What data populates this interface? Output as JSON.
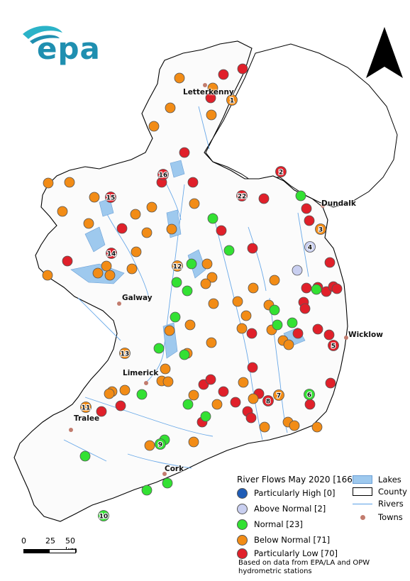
{
  "logo": {
    "text": "epa",
    "colors": [
      "#2bb3c8",
      "#1f8fb0"
    ]
  },
  "north_arrow": {
    "icon": "north-arrow-icon"
  },
  "towns": [
    {
      "name": "Letterkenny"
    },
    {
      "name": "Dundalk"
    },
    {
      "name": "Galway"
    },
    {
      "name": "Wicklow"
    },
    {
      "name": "Limerick"
    },
    {
      "name": "Tralee"
    },
    {
      "name": "Cork"
    }
  ],
  "legend": {
    "title": "River Flows May 2020 [166]",
    "classes": [
      {
        "label": "Particularly High [0]",
        "color": "#1f5cb6"
      },
      {
        "label": "Above Normal [2]",
        "color": "#c9cff0"
      },
      {
        "label": "Normal [23]",
        "color": "#33e133"
      },
      {
        "label": "Below Normal [71]",
        "color": "#f28c16"
      },
      {
        "label": "Particularly Low [70]",
        "color": "#e0202a"
      }
    ],
    "symbols": [
      {
        "label": "Lakes",
        "icon": "lake-symbol"
      },
      {
        "label": "County",
        "icon": "county-symbol"
      },
      {
        "label": "Rivers",
        "icon": "river-symbol"
      },
      {
        "label": "Towns",
        "icon": "town-symbol"
      }
    ]
  },
  "scale_bar": {
    "ticks": [
      "0",
      "25",
      "50 km"
    ]
  },
  "source_note": "Based on data from EPA/LA and OPW hydrometric stations",
  "numbered_stations": [
    {
      "n": "1",
      "cls": "below"
    },
    {
      "n": "2",
      "cls": "low"
    },
    {
      "n": "3",
      "cls": "below"
    },
    {
      "n": "4",
      "cls": "above"
    },
    {
      "n": "5",
      "cls": "low"
    },
    {
      "n": "6",
      "cls": "normal"
    },
    {
      "n": "7",
      "cls": "below"
    },
    {
      "n": "8",
      "cls": "low"
    },
    {
      "n": "9",
      "cls": "normal"
    },
    {
      "n": "10",
      "cls": "normal"
    },
    {
      "n": "11",
      "cls": "below"
    },
    {
      "n": "12",
      "cls": "below"
    },
    {
      "n": "13",
      "cls": "below"
    },
    {
      "n": "14",
      "cls": "low"
    },
    {
      "n": "15",
      "cls": "low"
    },
    {
      "n": "16",
      "cls": "low"
    },
    {
      "n": "22",
      "cls": "low"
    }
  ]
}
